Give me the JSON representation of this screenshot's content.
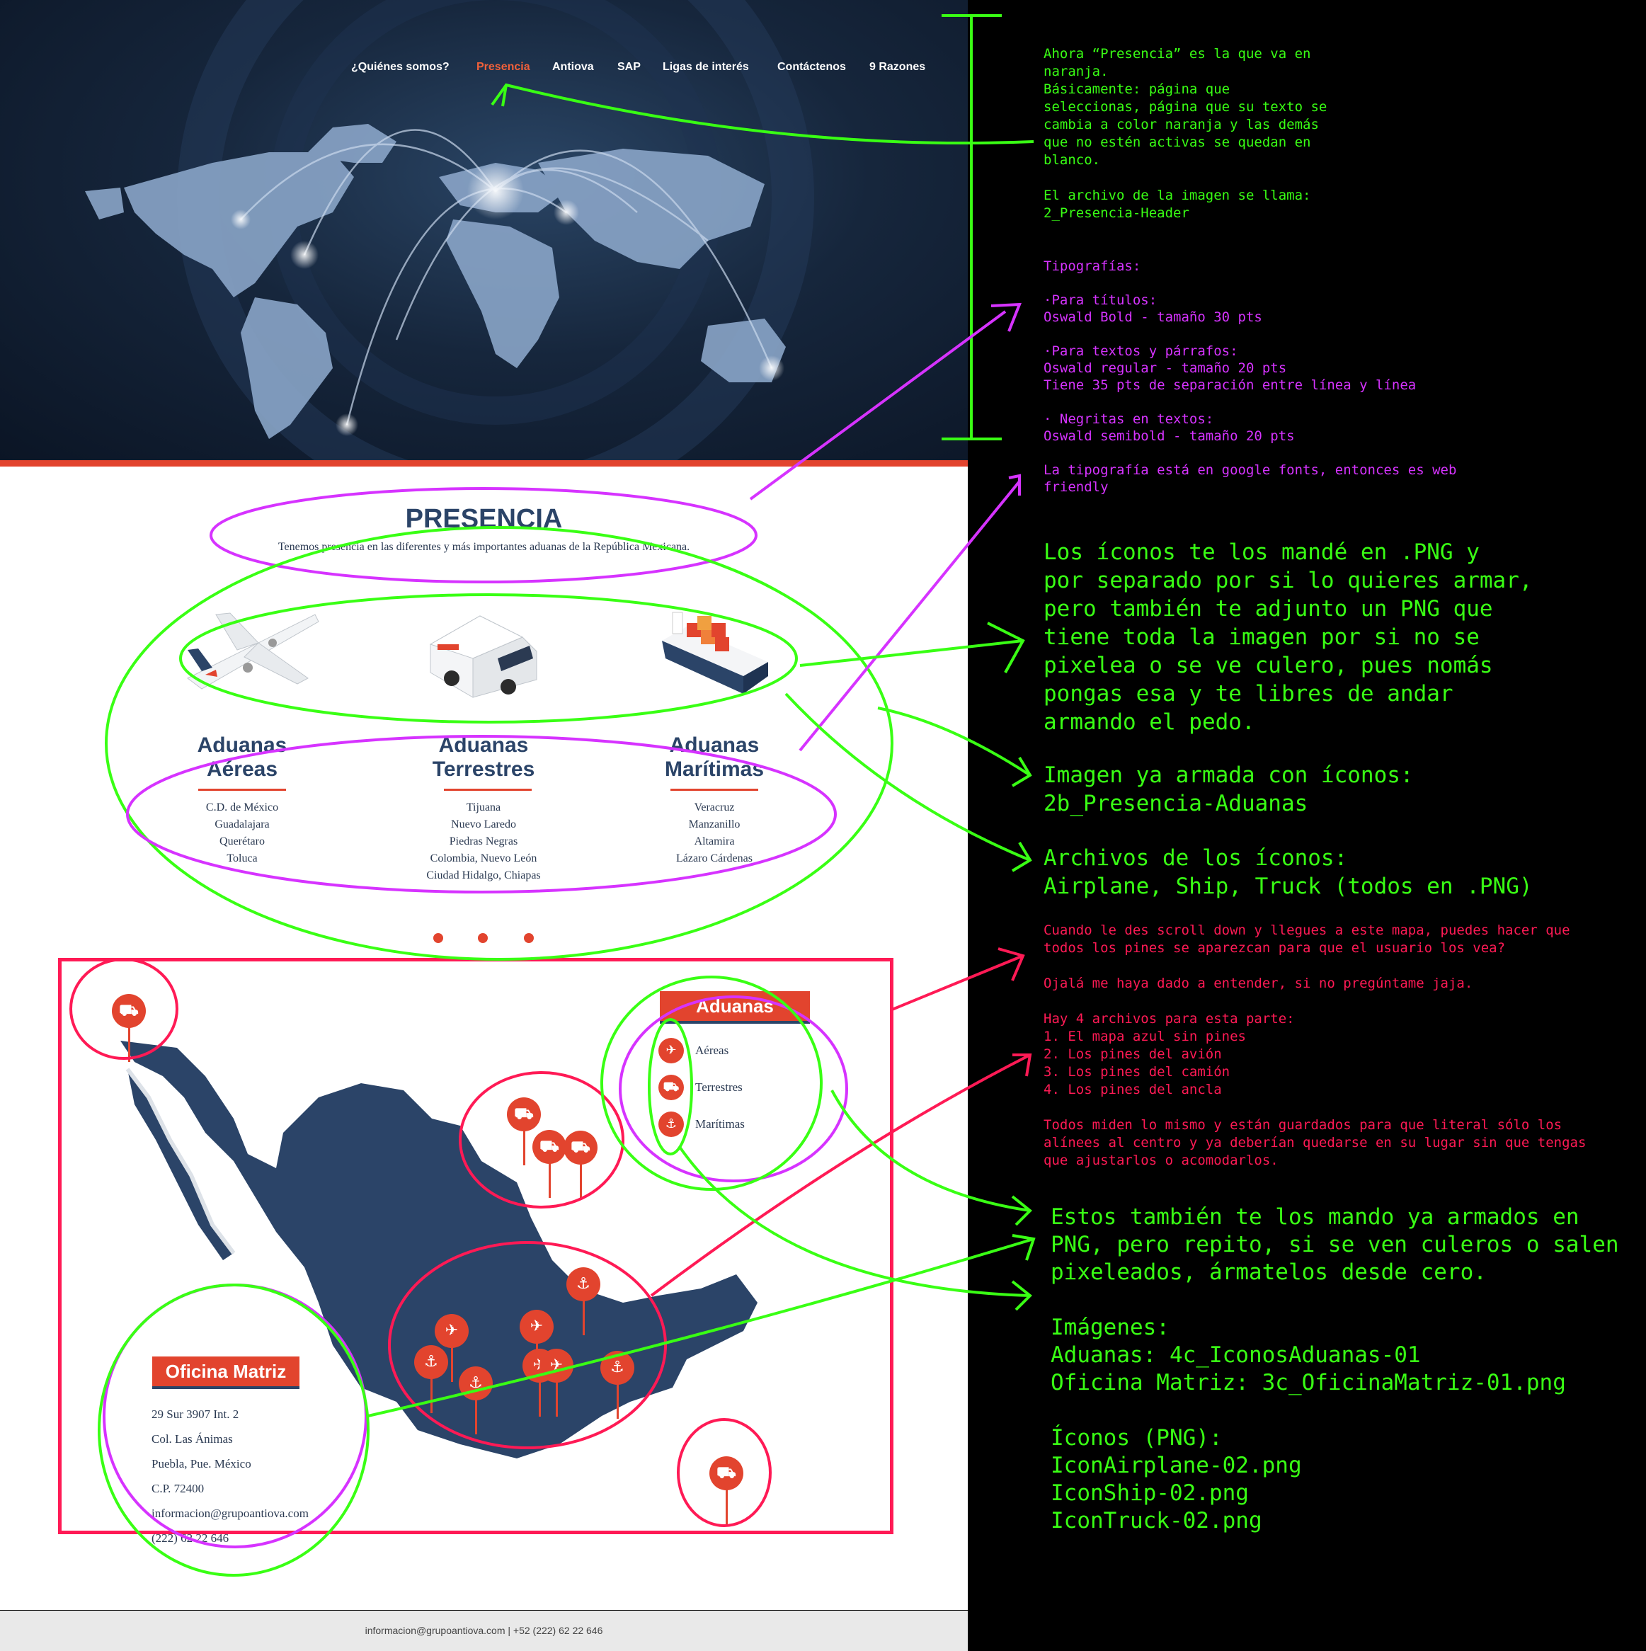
{
  "nav": {
    "items": [
      "¿Quiénes somos?",
      "Presencia",
      "Antiova",
      "SAP",
      "Ligas de interés",
      "Contáctenos",
      "9 Razones"
    ],
    "active": "Presencia",
    "active_color": "#f0603a"
  },
  "presencia": {
    "title": "PRESENCIA",
    "subtitle": "Tenemos presencia en las diferentes y más importantes aduanas de la República Mexicana."
  },
  "aduanas_cols": [
    {
      "title1": "Aduanas",
      "title2": "Aéreas",
      "icon": "airplane-icon",
      "places": [
        "C.D. de México",
        "Guadalajara",
        "Querétaro",
        "Toluca"
      ]
    },
    {
      "title1": "Aduanas",
      "title2": "Terrestres",
      "icon": "truck-icon",
      "places": [
        "Tijuana",
        "Nuevo Laredo",
        "Piedras Negras",
        "Colombia, Nuevo León",
        "Ciudad Hidalgo, Chiapas"
      ]
    },
    {
      "title1": "Aduanas",
      "title2": "Marítimas",
      "icon": "ship-icon",
      "places": [
        "Veracruz",
        "Manzanillo",
        "Altamira",
        "Lázaro Cárdenas"
      ]
    }
  ],
  "map": {
    "legend_title": "Aduanas",
    "legend_items": [
      "Aéreas",
      "Terrestres",
      "Marítimas"
    ],
    "office_title": "Oficina Matriz",
    "office_lines": [
      "29 Sur 3907 Int. 2",
      "Col. Las Ánimas",
      "Puebla, Pue. México",
      "C.P. 72400",
      "informacion@grupoantiova.com",
      "(222) 62 22 646"
    ]
  },
  "footer": {
    "text": "informacion@grupoantiova.com | +52 (222) 62 22 646"
  },
  "notes": {
    "note1": "Ahora “Presencia” es la que va en\nnaranja.\nBásicamente: página que\nseleccionas, página que su texto se\ncambia a color naranja y las demás\nque no estén activas se quedan en\nblanco.\n\nEl archivo de la imagen se llama:\n2_Presencia-Header",
    "note2": "Tipografías:\n\n·Para títulos:\nOswald Bold - tamaño 30 pts\n\n·Para textos y párrafos:\nOswald regular - tamaño 20 pts\nTiene 35 pts de separación entre línea y línea\n\n· Negritas en textos:\nOswald semibold - tamaño 20 pts\n\nLa tipografía está en google fonts, entonces es web\nfriendly",
    "note3": "Los íconos te los mandé en .PNG y\npor separado por si lo quieres armar,\npero también te adjunto un PNG que\ntiene toda la imagen por si no se\npixelea o se ve culero, pues nomás\npongas esa y te libres de andar\narmando el pedo.",
    "note4": "Imagen ya armada con íconos:\n2b_Presencia-Aduanas",
    "note5": "Archivos de los íconos:\nAirplane, Ship, Truck (todos en .PNG)",
    "note6": "Cuando le des scroll down y llegues a este mapa, puedes hacer que\ntodos los pines se aparezcan para que el usuario los vea?\n\nOjalá me haya dado a entender, si no pregúntame jaja.\n\nHay 4 archivos para esta parte:\n1. El mapa azul sin pines\n2. Los pines del avión\n3. Los pines del camión\n4. Los pines del ancla\n\nTodos miden lo mismo y están guardados para que literal sólo los\nalínees al centro y ya deberían quedarse en su lugar sin que tengas\nque ajustarlos o acomodarlos.",
    "note7": "Estos también te los mando ya armados en\nPNG, pero repito, si se ven culeros o salen\npixeleados, ármatelos desde cero.\n\nImágenes:\nAduanas: 4c_IconosAduanas-01\nOficina Matriz: 3c_OficinaMatriz-01.png\n\nÍconos (PNG):\nIconAirplane-02.png\nIconShip-02.png\nIconTruck-02.png"
  },
  "colors": {
    "green": "#39ff14",
    "magenta": "#d633ff",
    "red": "#ff1a55",
    "orange": "#e2442e",
    "navy": "#2b4468"
  }
}
